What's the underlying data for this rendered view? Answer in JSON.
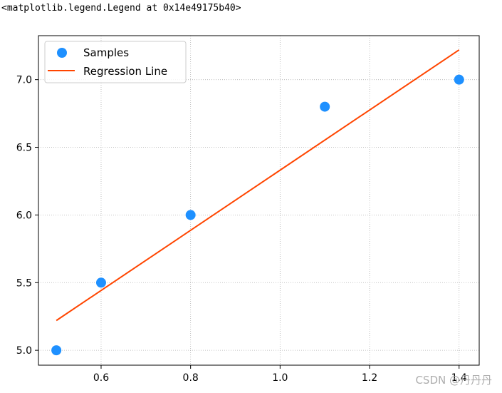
{
  "output_repr": "<matplotlib.legend.Legend at 0x14e49175b40>",
  "watermark": "CSDN @丹丹丹",
  "colors": {
    "samples": "#1E90FF",
    "regression_line": "#FF4500",
    "grid": "#b0b0b0",
    "axes": "#000000"
  },
  "chart_data": {
    "type": "scatter",
    "title": "",
    "xlabel": "",
    "ylabel": "",
    "xlim": [
      0.46,
      1.445
    ],
    "ylim": [
      4.89,
      7.325
    ],
    "xticks": [
      0.6,
      0.8,
      1.0,
      1.2,
      1.4
    ],
    "xtick_labels": [
      "0.6",
      "0.8",
      "1.0",
      "1.2",
      "1.4"
    ],
    "yticks": [
      5.0,
      5.5,
      6.0,
      6.5,
      7.0
    ],
    "ytick_labels": [
      "5.0",
      "5.5",
      "6.0",
      "6.5",
      "7.0"
    ],
    "grid": true,
    "grid_style": "dotted",
    "legend_position": "upper-left",
    "series": [
      {
        "name": "Samples",
        "kind": "scatter",
        "x": [
          0.5,
          0.6,
          0.8,
          1.1,
          1.4
        ],
        "y": [
          5.0,
          5.5,
          6.0,
          6.8,
          7.0
        ]
      },
      {
        "name": "Regression Line",
        "kind": "line",
        "x": [
          0.5,
          1.4
        ],
        "y": [
          5.22,
          7.22
        ]
      }
    ]
  }
}
